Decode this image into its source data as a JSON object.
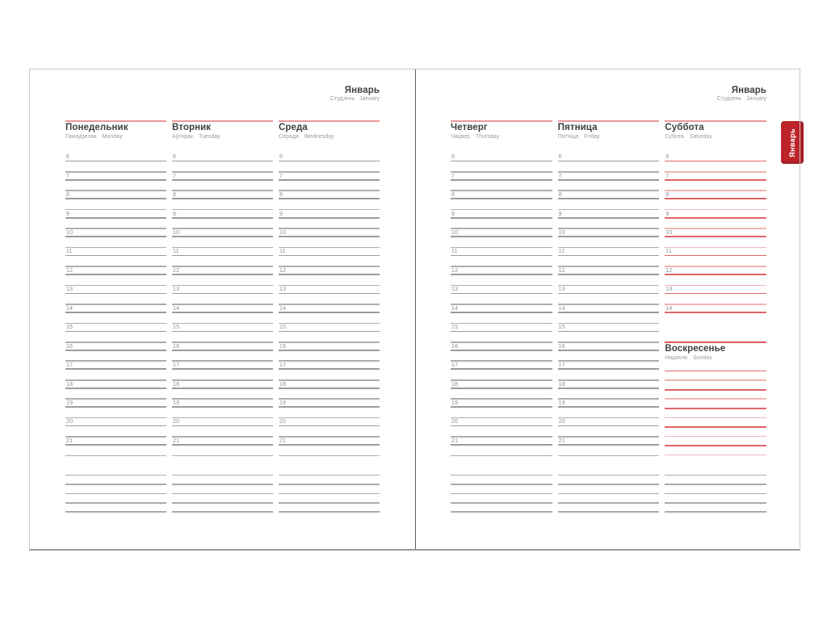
{
  "month": {
    "title": "Январь",
    "subtitle_local": "Студзень",
    "subtitle_en": "January"
  },
  "tab": {
    "label": "Январь"
  },
  "colors": {
    "red_tab": "#bd242a",
    "rule_salmon": "#ed9797",
    "sun_rule": "#dc5759",
    "line_red_dark": "#e16466",
    "line_red_light": "#f2b4b5",
    "line_gray_dark": "#9b9b9b",
    "line_gray_light": "#aeaeae",
    "line_note": "#ababab",
    "text_dark": "#3f3f3f",
    "text_gray": "#9c9c9c",
    "text_num": "#8e8e8e",
    "fold": "#606060",
    "page_border": "#c8c8c8",
    "page_border_bottom": "#999999"
  },
  "pages": [
    {
      "id": "left",
      "columns": [
        {
          "title": "Понедельник",
          "subtitle_local": "Панядзелак",
          "subtitle_en": "Monday",
          "theme": "gray",
          "hours": [
            6,
            7,
            8,
            9,
            10,
            11,
            12,
            13,
            14,
            15,
            16,
            17,
            18,
            19,
            20,
            21
          ],
          "half_after_last": true,
          "note_lines": 5
        },
        {
          "title": "Вторник",
          "subtitle_local": "Аўторак",
          "subtitle_en": "Tuesday",
          "theme": "gray",
          "hours": [
            6,
            7,
            8,
            9,
            10,
            11,
            12,
            13,
            14,
            15,
            16,
            17,
            18,
            19,
            20,
            21
          ],
          "half_after_last": true,
          "note_lines": 5
        },
        {
          "title": "Среда",
          "subtitle_local": "Серада",
          "subtitle_en": "Wednesday",
          "theme": "gray",
          "hours": [
            6,
            7,
            8,
            9,
            10,
            11,
            12,
            13,
            14,
            15,
            16,
            17,
            18,
            19,
            20,
            21
          ],
          "half_after_last": true,
          "note_lines": 5
        }
      ]
    },
    {
      "id": "right",
      "columns": [
        {
          "title": "Четверг",
          "subtitle_local": "Чацвер",
          "subtitle_en": "Thursday",
          "theme": "gray",
          "hours": [
            6,
            7,
            8,
            9,
            10,
            11,
            12,
            13,
            14,
            15,
            16,
            17,
            18,
            19,
            20,
            21
          ],
          "half_after_last": true,
          "note_lines": 5
        },
        {
          "title": "Пятница",
          "subtitle_local": "Пятніца",
          "subtitle_en": "Friday",
          "theme": "gray",
          "hours": [
            6,
            7,
            8,
            9,
            10,
            11,
            12,
            13,
            14,
            15,
            16,
            17,
            18,
            19,
            20,
            21
          ],
          "half_after_last": true,
          "note_lines": 5
        },
        {
          "title": "Суббота",
          "subtitle_local": "Субота",
          "subtitle_en": "Saturday",
          "theme": "red",
          "hours": [
            6,
            7,
            8,
            9,
            10,
            11,
            12,
            13,
            14
          ],
          "half_after_last": false,
          "note_lines": 5,
          "subsection": {
            "title": "Воскресенье",
            "subtitle_local": "Нядзеля",
            "subtitle_en": "Sunday",
            "line_count": 10
          }
        }
      ]
    }
  ]
}
